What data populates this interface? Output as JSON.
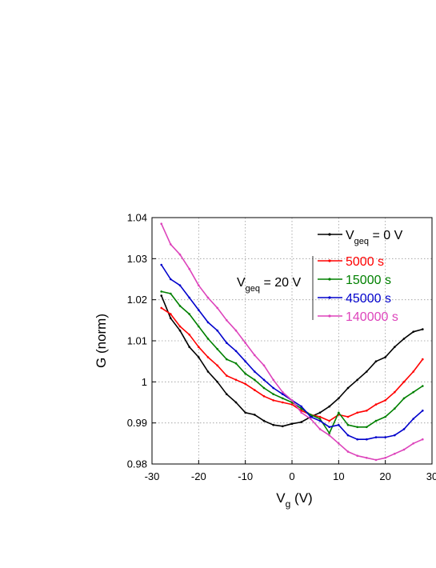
{
  "chart_data": {
    "type": "line",
    "xlabel": "V",
    "xlabel_sub": "g",
    "xlabel_unit": " (V)",
    "ylabel": "G (norm)",
    "xlim": [
      -30,
      30
    ],
    "ylim": [
      0.98,
      1.04
    ],
    "x_ticks": [
      -30,
      -20,
      -10,
      0,
      10,
      20,
      30
    ],
    "x_tick_labels": [
      "-30",
      "-20",
      "-10",
      "0",
      "10",
      "20",
      "30"
    ],
    "y_ticks": [
      0.98,
      0.99,
      1.0,
      1.01,
      1.02,
      1.03,
      1.04
    ],
    "y_tick_labels": [
      "0.98",
      "0.99",
      "1",
      "1.01",
      "1.02",
      "1.03",
      "1.04"
    ],
    "grid": true,
    "legend_placement": "top-right",
    "annotation": {
      "text": "V",
      "sub": "geq",
      "rest": " = 20 V"
    },
    "series": [
      {
        "name": "V",
        "name_sub": "geq",
        "name_rest": " = 0 V",
        "color": "#000000",
        "x": [
          -28,
          -26,
          -24,
          -22,
          -20,
          -18,
          -16,
          -14,
          -12,
          -10,
          -8,
          -6,
          -4,
          -2,
          0,
          2,
          4,
          6,
          8,
          10,
          12,
          14,
          16,
          18,
          20,
          22,
          24,
          26,
          28
        ],
        "y": [
          1.021,
          1.0155,
          1.0125,
          1.0085,
          1.006,
          1.0025,
          1.0,
          0.997,
          0.995,
          0.9925,
          0.992,
          0.9905,
          0.9895,
          0.9892,
          0.9898,
          0.9902,
          0.9915,
          0.9925,
          0.994,
          0.996,
          0.9985,
          1.0005,
          1.0025,
          1.005,
          1.006,
          1.0085,
          1.0105,
          1.0122,
          1.0128
        ]
      },
      {
        "name": "5000 s",
        "color": "#ff0000",
        "x": [
          -28,
          -26,
          -24,
          -22,
          -20,
          -18,
          -16,
          -14,
          -12,
          -10,
          -8,
          -6,
          -4,
          -2,
          0,
          2,
          4,
          6,
          8,
          10,
          12,
          14,
          16,
          18,
          20,
          22,
          24,
          26,
          28
        ],
        "y": [
          1.018,
          1.0165,
          1.0135,
          1.0115,
          1.0085,
          1.006,
          1.004,
          1.0015,
          1.0005,
          0.9995,
          0.998,
          0.9965,
          0.9955,
          0.995,
          0.9945,
          0.993,
          0.992,
          0.9915,
          0.9905,
          0.992,
          0.9915,
          0.9925,
          0.993,
          0.9945,
          0.9955,
          0.9975,
          1.0,
          1.0025,
          1.0055
        ]
      },
      {
        "name": "15000 s",
        "color": "#008000",
        "x": [
          -28,
          -26,
          -24,
          -22,
          -20,
          -18,
          -16,
          -14,
          -12,
          -10,
          -8,
          -6,
          -4,
          -2,
          0,
          2,
          4,
          6,
          8,
          10,
          12,
          14,
          16,
          18,
          20,
          22,
          24,
          26,
          28
        ],
        "y": [
          1.022,
          1.0215,
          1.0185,
          1.0165,
          1.0135,
          1.0105,
          1.008,
          1.0055,
          1.0045,
          1.002,
          1.0005,
          0.9985,
          0.997,
          0.996,
          0.995,
          0.9935,
          0.992,
          0.991,
          0.9875,
          0.9925,
          0.9895,
          0.989,
          0.989,
          0.9905,
          0.9915,
          0.9935,
          0.996,
          0.9975,
          0.999
        ]
      },
      {
        "name": "45000 s",
        "color": "#0000cc",
        "x": [
          -28,
          -26,
          -24,
          -22,
          -20,
          -18,
          -16,
          -14,
          -12,
          -10,
          -8,
          -6,
          -4,
          -2,
          0,
          2,
          4,
          6,
          8,
          10,
          12,
          14,
          16,
          18,
          20,
          22,
          24,
          26,
          28
        ],
        "y": [
          1.0285,
          1.025,
          1.0235,
          1.0205,
          1.0175,
          1.0145,
          1.0125,
          1.0095,
          1.0075,
          1.005,
          1.0025,
          1.0005,
          0.9985,
          0.997,
          0.9955,
          0.994,
          0.9915,
          0.9905,
          0.989,
          0.9895,
          0.987,
          0.986,
          0.986,
          0.9865,
          0.9865,
          0.987,
          0.9885,
          0.991,
          0.993
        ]
      },
      {
        "name": "140000 s",
        "color": "#dd44bb",
        "x": [
          -28,
          -26,
          -24,
          -22,
          -20,
          -18,
          -16,
          -14,
          -12,
          -10,
          -8,
          -6,
          -4,
          -2,
          0,
          2,
          4,
          6,
          8,
          10,
          12,
          14,
          16,
          18,
          20,
          22,
          24,
          26,
          28
        ],
        "y": [
          1.0385,
          1.0335,
          1.031,
          1.0275,
          1.0235,
          1.0205,
          1.018,
          1.015,
          1.0125,
          1.0095,
          1.0065,
          1.004,
          1.0005,
          0.9975,
          0.9955,
          0.9925,
          0.991,
          0.9885,
          0.987,
          0.985,
          0.983,
          0.982,
          0.9815,
          0.981,
          0.9815,
          0.9825,
          0.9835,
          0.985,
          0.986
        ]
      }
    ]
  }
}
